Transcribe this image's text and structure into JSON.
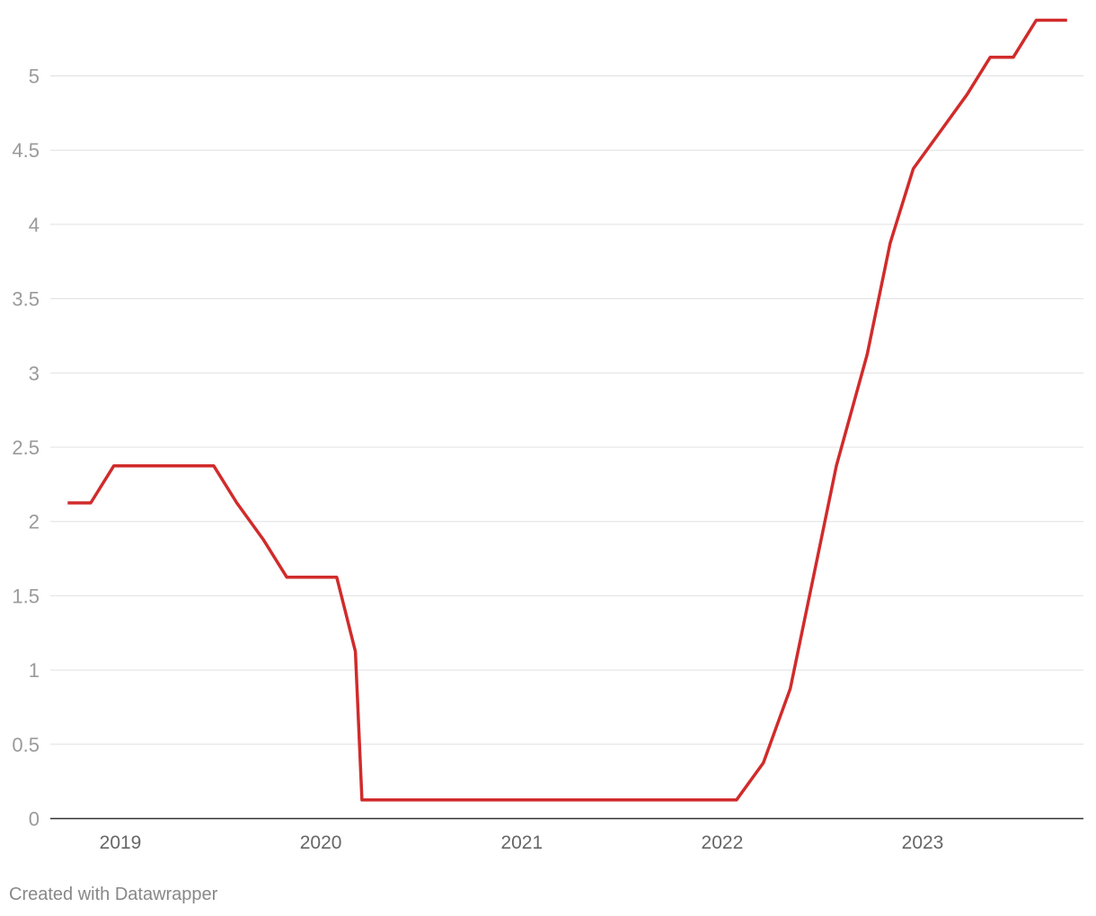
{
  "chart_data": {
    "type": "line",
    "y_ticks": [
      "0",
      "0.5",
      "1",
      "1.5",
      "2",
      "2.5",
      "3",
      "3.5",
      "4",
      "4.5",
      "5"
    ],
    "x_ticks": [
      "2019",
      "2020",
      "2021",
      "2022",
      "2023"
    ],
    "ylim": [
      0,
      5.5
    ],
    "grid": true,
    "series": [
      {
        "color": "#d12b2b",
        "points": [
          [
            "2018-09-27",
            2.125
          ],
          [
            "2018-11-08",
            2.125
          ],
          [
            "2018-12-20",
            2.375
          ],
          [
            "2019-01-31",
            2.375
          ],
          [
            "2019-03-21",
            2.375
          ],
          [
            "2019-05-02",
            2.375
          ],
          [
            "2019-06-20",
            2.375
          ],
          [
            "2019-08-01",
            2.125
          ],
          [
            "2019-09-19",
            1.875
          ],
          [
            "2019-10-31",
            1.625
          ],
          [
            "2019-12-12",
            1.625
          ],
          [
            "2020-01-30",
            1.625
          ],
          [
            "2020-03-04",
            1.125
          ],
          [
            "2020-03-16",
            0.125
          ],
          [
            "2020-12-17",
            0.125
          ],
          [
            "2021-06-17",
            0.125
          ],
          [
            "2022-01-27",
            0.125
          ],
          [
            "2022-03-17",
            0.375
          ],
          [
            "2022-05-05",
            0.875
          ],
          [
            "2022-06-16",
            1.625
          ],
          [
            "2022-07-28",
            2.375
          ],
          [
            "2022-09-22",
            3.125
          ],
          [
            "2022-11-03",
            3.875
          ],
          [
            "2022-12-15",
            4.375
          ],
          [
            "2023-02-02",
            4.625
          ],
          [
            "2023-03-23",
            4.875
          ],
          [
            "2023-05-04",
            5.125
          ],
          [
            "2023-06-15",
            5.125
          ],
          [
            "2023-07-27",
            5.375
          ],
          [
            "2023-09-21",
            5.375
          ]
        ]
      }
    ]
  },
  "footer": {
    "credit": "Created with Datawrapper"
  }
}
